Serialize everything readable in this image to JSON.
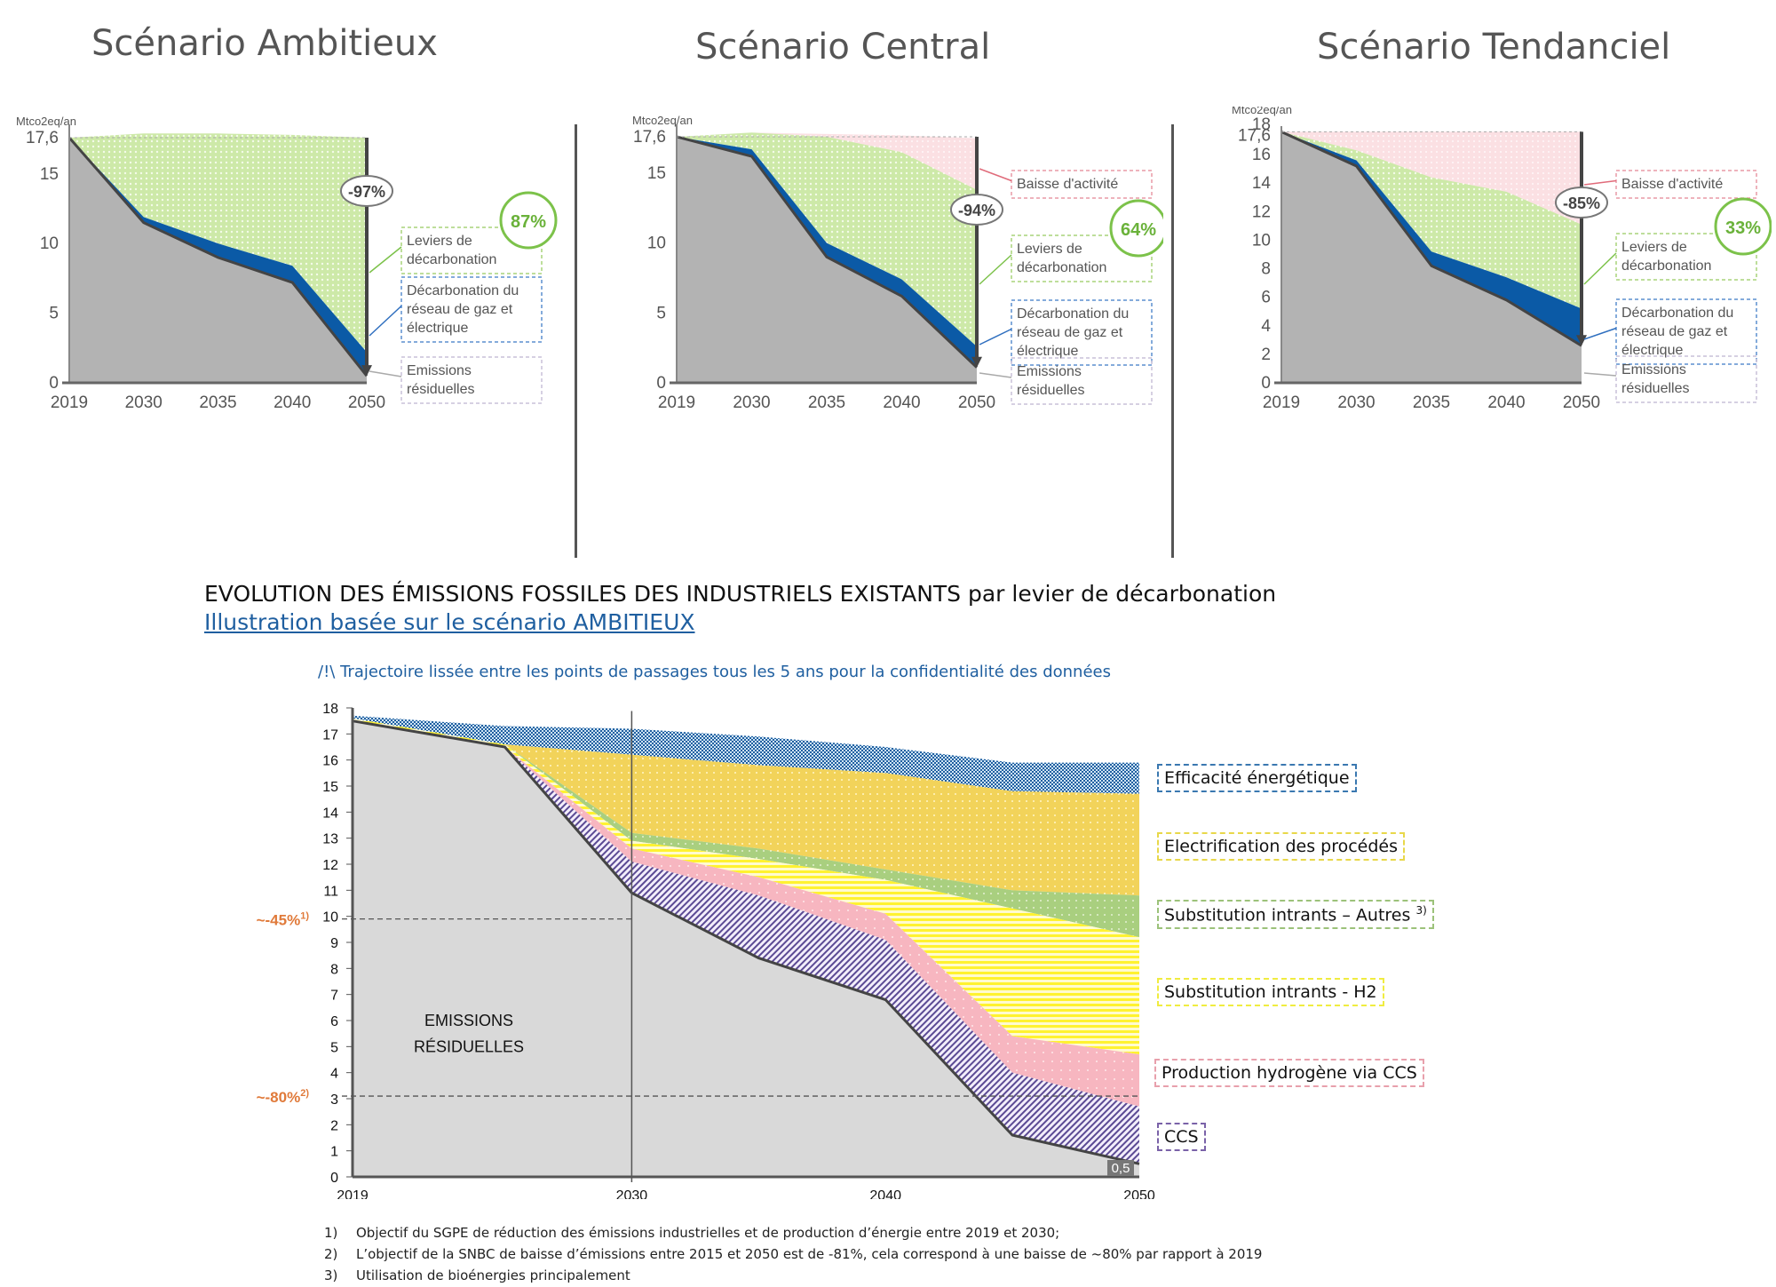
{
  "scenarios": [
    {
      "title": "Scénario Ambitieux",
      "unit": "Mtco2eq/an",
      "years": [
        "2019",
        "2030",
        "2035",
        "2040",
        "2050"
      ],
      "yticks": [
        "0",
        "5",
        "10",
        "15",
        "17,6"
      ],
      "yticks_values": [
        0,
        5,
        10,
        15,
        17.6
      ],
      "ymax": 18.5,
      "reduction_badge": "-97%",
      "levers_share": "87%",
      "labels": {
        "baisse": "",
        "leviers": "Leviers de décarbonation",
        "reseau": "Décarbonation du réseau de gaz et électrique",
        "residuelles": "Emissions résiduelles"
      },
      "series": {
        "residual": [
          17.6,
          11.5,
          9.0,
          7.2,
          0.5
        ],
        "reseau_top": [
          17.6,
          11.9,
          10.0,
          8.4,
          2.2
        ],
        "leviers_top": [
          17.6,
          17.9,
          17.9,
          17.8,
          17.6
        ],
        "baisse_top": [
          17.6,
          17.9,
          17.9,
          17.8,
          17.6
        ]
      }
    },
    {
      "title": "Scénario Central",
      "unit": "Mtco2eq/an",
      "years": [
        "2019",
        "2030",
        "2035",
        "2040",
        "2050"
      ],
      "yticks": [
        "0",
        "5",
        "10",
        "15",
        "17,6"
      ],
      "yticks_values": [
        0,
        5,
        10,
        15,
        17.6
      ],
      "ymax": 18.5,
      "reduction_badge": "-94%",
      "levers_share": "64%",
      "labels": {
        "baisse": "Baisse d'activité",
        "leviers": "Leviers de décarbonation",
        "reseau": "Décarbonation du réseau de gaz et électrique",
        "residuelles": "Emissions résiduelles"
      },
      "series": {
        "residual": [
          17.6,
          16.2,
          9.0,
          6.2,
          1.1
        ],
        "reseau_top": [
          17.6,
          16.7,
          10.0,
          7.4,
          2.6
        ],
        "leviers_top": [
          17.6,
          17.9,
          17.6,
          16.5,
          13.8
        ],
        "baisse_top": [
          17.6,
          17.9,
          17.8,
          17.7,
          17.5
        ]
      }
    },
    {
      "title": "Scénario Tendanciel",
      "unit": "Mtco2eq/an",
      "years": [
        "2019",
        "2030",
        "2035",
        "2040",
        "2050"
      ],
      "yticks": [
        "0",
        "2",
        "4",
        "6",
        "8",
        "10",
        "12",
        "14",
        "16",
        "17,6",
        "18"
      ],
      "yticks_values": [
        0,
        2,
        4,
        6,
        8,
        10,
        12,
        14,
        16,
        17.6,
        18
      ],
      "ymax": 18,
      "reduction_badge": "-85%",
      "levers_share": "33%",
      "labels": {
        "baisse": "Baisse d'activité",
        "leviers": "Leviers de décarbonation",
        "reseau": "Décarbonation du réseau de gaz et électrique",
        "residuelles": "Emissions résiduelles"
      },
      "series": {
        "residual": [
          17.6,
          15.2,
          8.2,
          5.8,
          2.6
        ],
        "reseau_top": [
          17.6,
          15.6,
          9.2,
          7.4,
          5.2
        ],
        "leviers_top": [
          17.6,
          16.3,
          14.4,
          13.4,
          11.1
        ],
        "baisse_top": [
          17.6,
          17.6,
          17.6,
          17.6,
          17.6
        ]
      }
    }
  ],
  "main": {
    "title": "EVOLUTION DES ÉMISSIONS FOSSILES DES INDUSTRIELS EXISTANTS par levier de décarbonation",
    "subtitle_link": "Illustration basée sur le scénario AMBITIEUX",
    "warning": "/!\\ Trajectoire lissée entre les points de passages tous les 5 ans pour la confidentialité des données",
    "residual_label_line1": "EMISSIONS",
    "residual_label_line2": "RÉSIDUELLES",
    "end_value_label": "0,5",
    "ref_lines": [
      {
        "label": "~-45%",
        "sup": "1)",
        "value": 9.9,
        "color": "#e07a3a"
      },
      {
        "label": "~-80%",
        "sup": "2)",
        "value": 3.1,
        "color": "#e07a3a"
      }
    ]
  },
  "chart_data": {
    "type": "area",
    "title": "EVOLUTION DES ÉMISSIONS FOSSILES DES INDUSTRIELS EXISTANTS par levier de décarbonation",
    "xlabel": "",
    "ylabel": "",
    "x": [
      2019,
      2025,
      2030,
      2035,
      2040,
      2045,
      2050
    ],
    "xticks": [
      "2019",
      "2030",
      "2040",
      "2050"
    ],
    "xticks_values": [
      2019,
      2030,
      2040,
      2050
    ],
    "yticks": [
      "0",
      "1",
      "2",
      "3",
      "4",
      "5",
      "6",
      "7",
      "8",
      "9",
      "10",
      "11",
      "12",
      "13",
      "14",
      "15",
      "16",
      "17",
      "18"
    ],
    "ylim": [
      0,
      18
    ],
    "grid": false,
    "legend": "right",
    "series": [
      {
        "name": "Emissions résiduelles",
        "color": "#d9d9d9",
        "values": [
          17.5,
          16.5,
          10.9,
          8.4,
          6.8,
          1.6,
          0.5
        ]
      },
      {
        "name": "CCS",
        "color": "#7a62a8",
        "values": [
          0.0,
          0.0,
          1.2,
          2.4,
          2.3,
          2.4,
          2.2
        ]
      },
      {
        "name": "Production hydrogène via CCS",
        "color": "#f7b6c0",
        "values": [
          0.0,
          0.0,
          0.5,
          0.7,
          1.0,
          1.4,
          2.0
        ]
      },
      {
        "name": "Substitution intrants - H2",
        "color": "#fff230",
        "values": [
          0.1,
          0.1,
          0.3,
          0.7,
          1.3,
          4.9,
          4.5
        ]
      },
      {
        "name": "Substitution intrants – Autres 3)",
        "color": "#a9cf7f",
        "values": [
          0.0,
          0.0,
          0.3,
          0.4,
          0.4,
          0.7,
          1.6
        ]
      },
      {
        "name": "Electrification des procédés",
        "color": "#f2d35a",
        "values": [
          0.0,
          0.0,
          3.0,
          3.2,
          3.7,
          3.8,
          3.9
        ]
      },
      {
        "name": "Efficacité énergétique",
        "color": "#1f5fa0",
        "values": [
          0.1,
          0.7,
          1.0,
          1.1,
          1.0,
          1.1,
          1.2
        ]
      }
    ],
    "annotations": [
      "0,5",
      "~-45% 1)",
      "~-80% 2)",
      "EMISSIONS RÉSIDUELLES"
    ]
  },
  "legend": [
    {
      "label": "Efficacité énergétique",
      "border": "#3a78b0"
    },
    {
      "label": "Electrification des procédés",
      "border": "#e8d84a"
    },
    {
      "label": "Substitution intrants – Autres",
      "sup": "3)",
      "border": "#9cc27a"
    },
    {
      "label": "Substitution intrants - H2",
      "border": "#f0ec40"
    },
    {
      "label": "Production hydrogène via CCS",
      "border": "#e8a0ac"
    },
    {
      "label": "CCS",
      "border": "#7a62a8"
    }
  ],
  "footnotes": [
    {
      "num": "1)",
      "text": "Objectif du SGPE de réduction des émissions industrielles et de production d’énergie entre 2019 et 2030;"
    },
    {
      "num": "2)",
      "text": "L’objectif de la SNBC de baisse d’émissions entre 2015 et 2050 est de -81%, cela correspond à une baisse de ~80% par rapport à 2019"
    },
    {
      "num": "3)",
      "text": "Utilisation de bioénergies principalement"
    }
  ]
}
